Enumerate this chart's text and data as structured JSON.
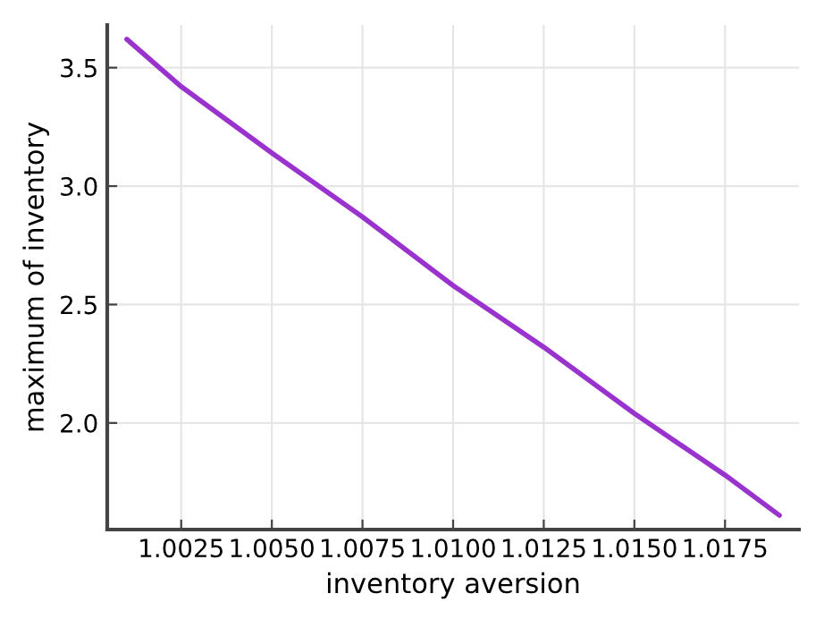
{
  "chart_data": {
    "type": "line",
    "xlabel": "inventory aversion",
    "ylabel": "maximum of inventory",
    "x": [
      1.001,
      1.0025,
      1.005,
      1.0075,
      1.01,
      1.0125,
      1.015,
      1.0175,
      1.019
    ],
    "series": [
      {
        "color": "#9a32cd",
        "values": [
          3.62,
          3.42,
          3.14,
          2.87,
          2.58,
          2.32,
          2.04,
          1.78,
          1.61
        ]
      }
    ],
    "xlim": [
      1.00046,
      1.01954
    ],
    "ylim": [
      1.55,
      3.68
    ],
    "xticks": [
      1.0025,
      {
        "value": 1.005,
        "label": "1.0050"
      },
      1.0075,
      {
        "value": 1.01,
        "label": "1.0100"
      },
      1.0125,
      {
        "value": 1.015,
        "label": "1.0150"
      },
      1.0175
    ],
    "yticks": [
      {
        "value": 2,
        "label": "2.0"
      },
      2.5,
      {
        "value": 3,
        "label": "3.0"
      },
      3.5
    ],
    "grid": true,
    "legend": false
  }
}
